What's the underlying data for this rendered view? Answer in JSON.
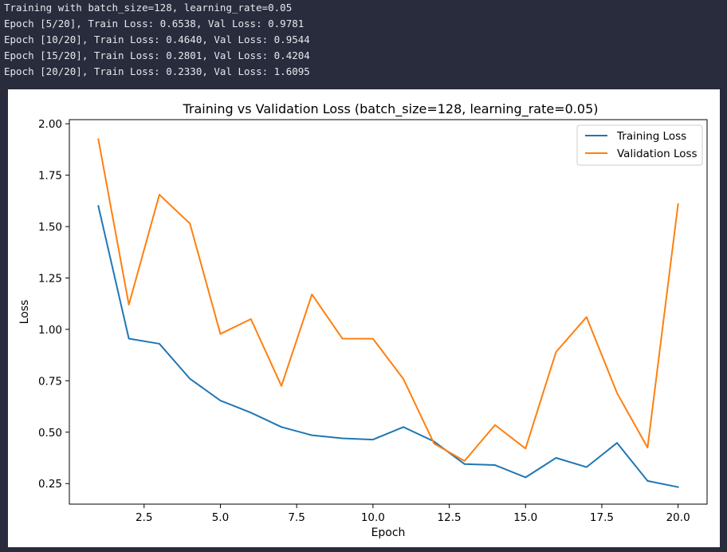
{
  "console": {
    "lines": [
      "Training with batch_size=128, learning_rate=0.05",
      "Epoch [5/20], Train Loss: 0.6538, Val Loss: 0.9781",
      "Epoch [10/20], Train Loss: 0.4640, Val Loss: 0.9544",
      "Epoch [15/20], Train Loss: 0.2801, Val Loss: 0.4204",
      "Epoch [20/20], Train Loss: 0.2330, Val Loss: 1.6095"
    ]
  },
  "chart_data": {
    "type": "line",
    "title": "Training vs Validation Loss (batch_size=128, learning_rate=0.05)",
    "xlabel": "Epoch",
    "ylabel": "Loss",
    "xlim": [
      0.05,
      20.95
    ],
    "ylim": [
      0.15,
      2.02
    ],
    "xticks": [
      2.5,
      5.0,
      7.5,
      10.0,
      12.5,
      15.0,
      17.5,
      20.0
    ],
    "xtick_labels": [
      "2.5",
      "5.0",
      "7.5",
      "10.0",
      "12.5",
      "15.0",
      "17.5",
      "20.0"
    ],
    "yticks": [
      0.25,
      0.5,
      0.75,
      1.0,
      1.25,
      1.5,
      1.75,
      2.0
    ],
    "ytick_labels": [
      "0.25",
      "0.50",
      "0.75",
      "1.00",
      "1.25",
      "1.50",
      "1.75",
      "2.00"
    ],
    "grid": false,
    "legend_position": "top-right",
    "x": [
      1,
      2,
      3,
      4,
      5,
      6,
      7,
      8,
      9,
      10,
      11,
      12,
      13,
      14,
      15,
      16,
      17,
      18,
      19,
      20
    ],
    "series": [
      {
        "name": "Training Loss",
        "color": "#1f77b4",
        "values": [
          1.6,
          0.955,
          0.93,
          0.76,
          0.6538,
          0.595,
          0.525,
          0.485,
          0.47,
          0.464,
          0.525,
          0.455,
          0.345,
          0.34,
          0.2801,
          0.375,
          0.33,
          0.448,
          0.263,
          0.233
        ]
      },
      {
        "name": "Validation Loss",
        "color": "#ff7f0e",
        "values": [
          1.925,
          1.12,
          1.655,
          1.515,
          0.9781,
          1.05,
          0.725,
          1.17,
          0.955,
          0.9544,
          0.758,
          0.445,
          0.36,
          0.535,
          0.4204,
          0.89,
          1.06,
          0.69,
          0.425,
          1.6095
        ]
      }
    ]
  }
}
